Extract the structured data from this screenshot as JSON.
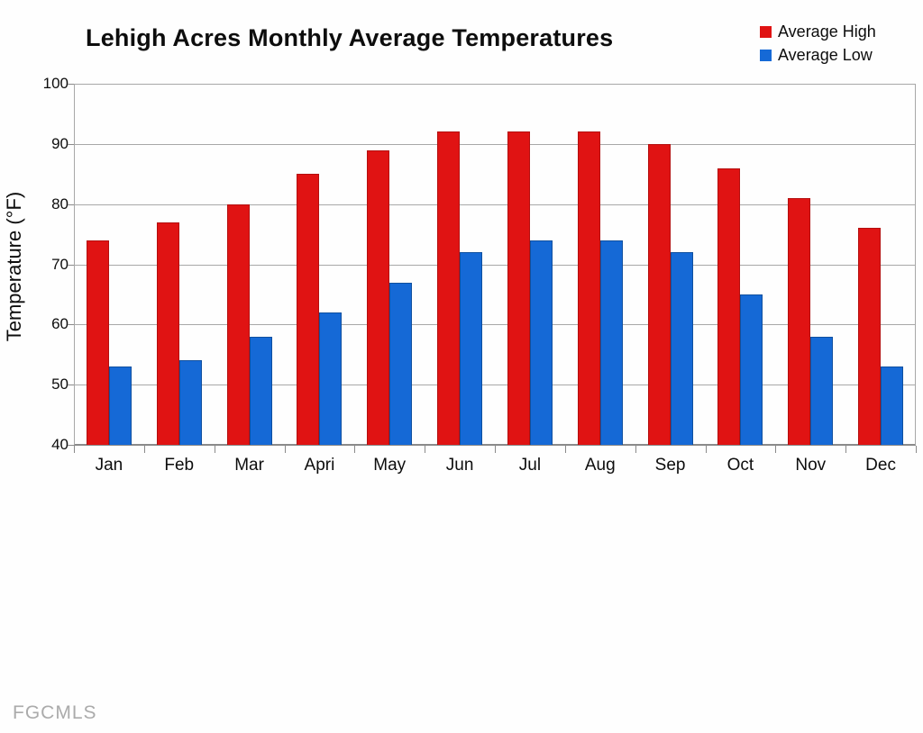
{
  "title": "Lehigh Acres Monthly Average Temperatures",
  "watermark": "FGCMLS",
  "colors": {
    "high_bar": "#e01313",
    "low_bar": "#1569d6",
    "gridline": "#a8a8a8",
    "axis": "#8a8a8a",
    "text": "#0d0d0d",
    "watermark": "#ababab"
  },
  "chart_data": {
    "type": "bar",
    "title": "Lehigh Acres Monthly Average Temperatures",
    "categories": [
      "Jan",
      "Feb",
      "Mar",
      "Apri",
      "May",
      "Jun",
      "Jul",
      "Aug",
      "Sep",
      "Oct",
      "Nov",
      "Dec"
    ],
    "series": [
      {
        "name": "Average High",
        "color": "#e01313",
        "values": [
          74,
          77,
          80,
          85,
          89,
          92,
          92,
          92,
          90,
          86,
          81,
          76
        ]
      },
      {
        "name": "Average Low",
        "color": "#1569d6",
        "values": [
          53,
          54,
          58,
          62,
          67,
          72,
          74,
          74,
          72,
          65,
          58,
          53
        ]
      }
    ],
    "xlabel": "",
    "ylabel": "Temperature (°F)",
    "ylim": [
      40,
      100
    ],
    "yticks": [
      40,
      50,
      60,
      70,
      80,
      90,
      100
    ],
    "grid": true,
    "legend_position": "top-right"
  }
}
